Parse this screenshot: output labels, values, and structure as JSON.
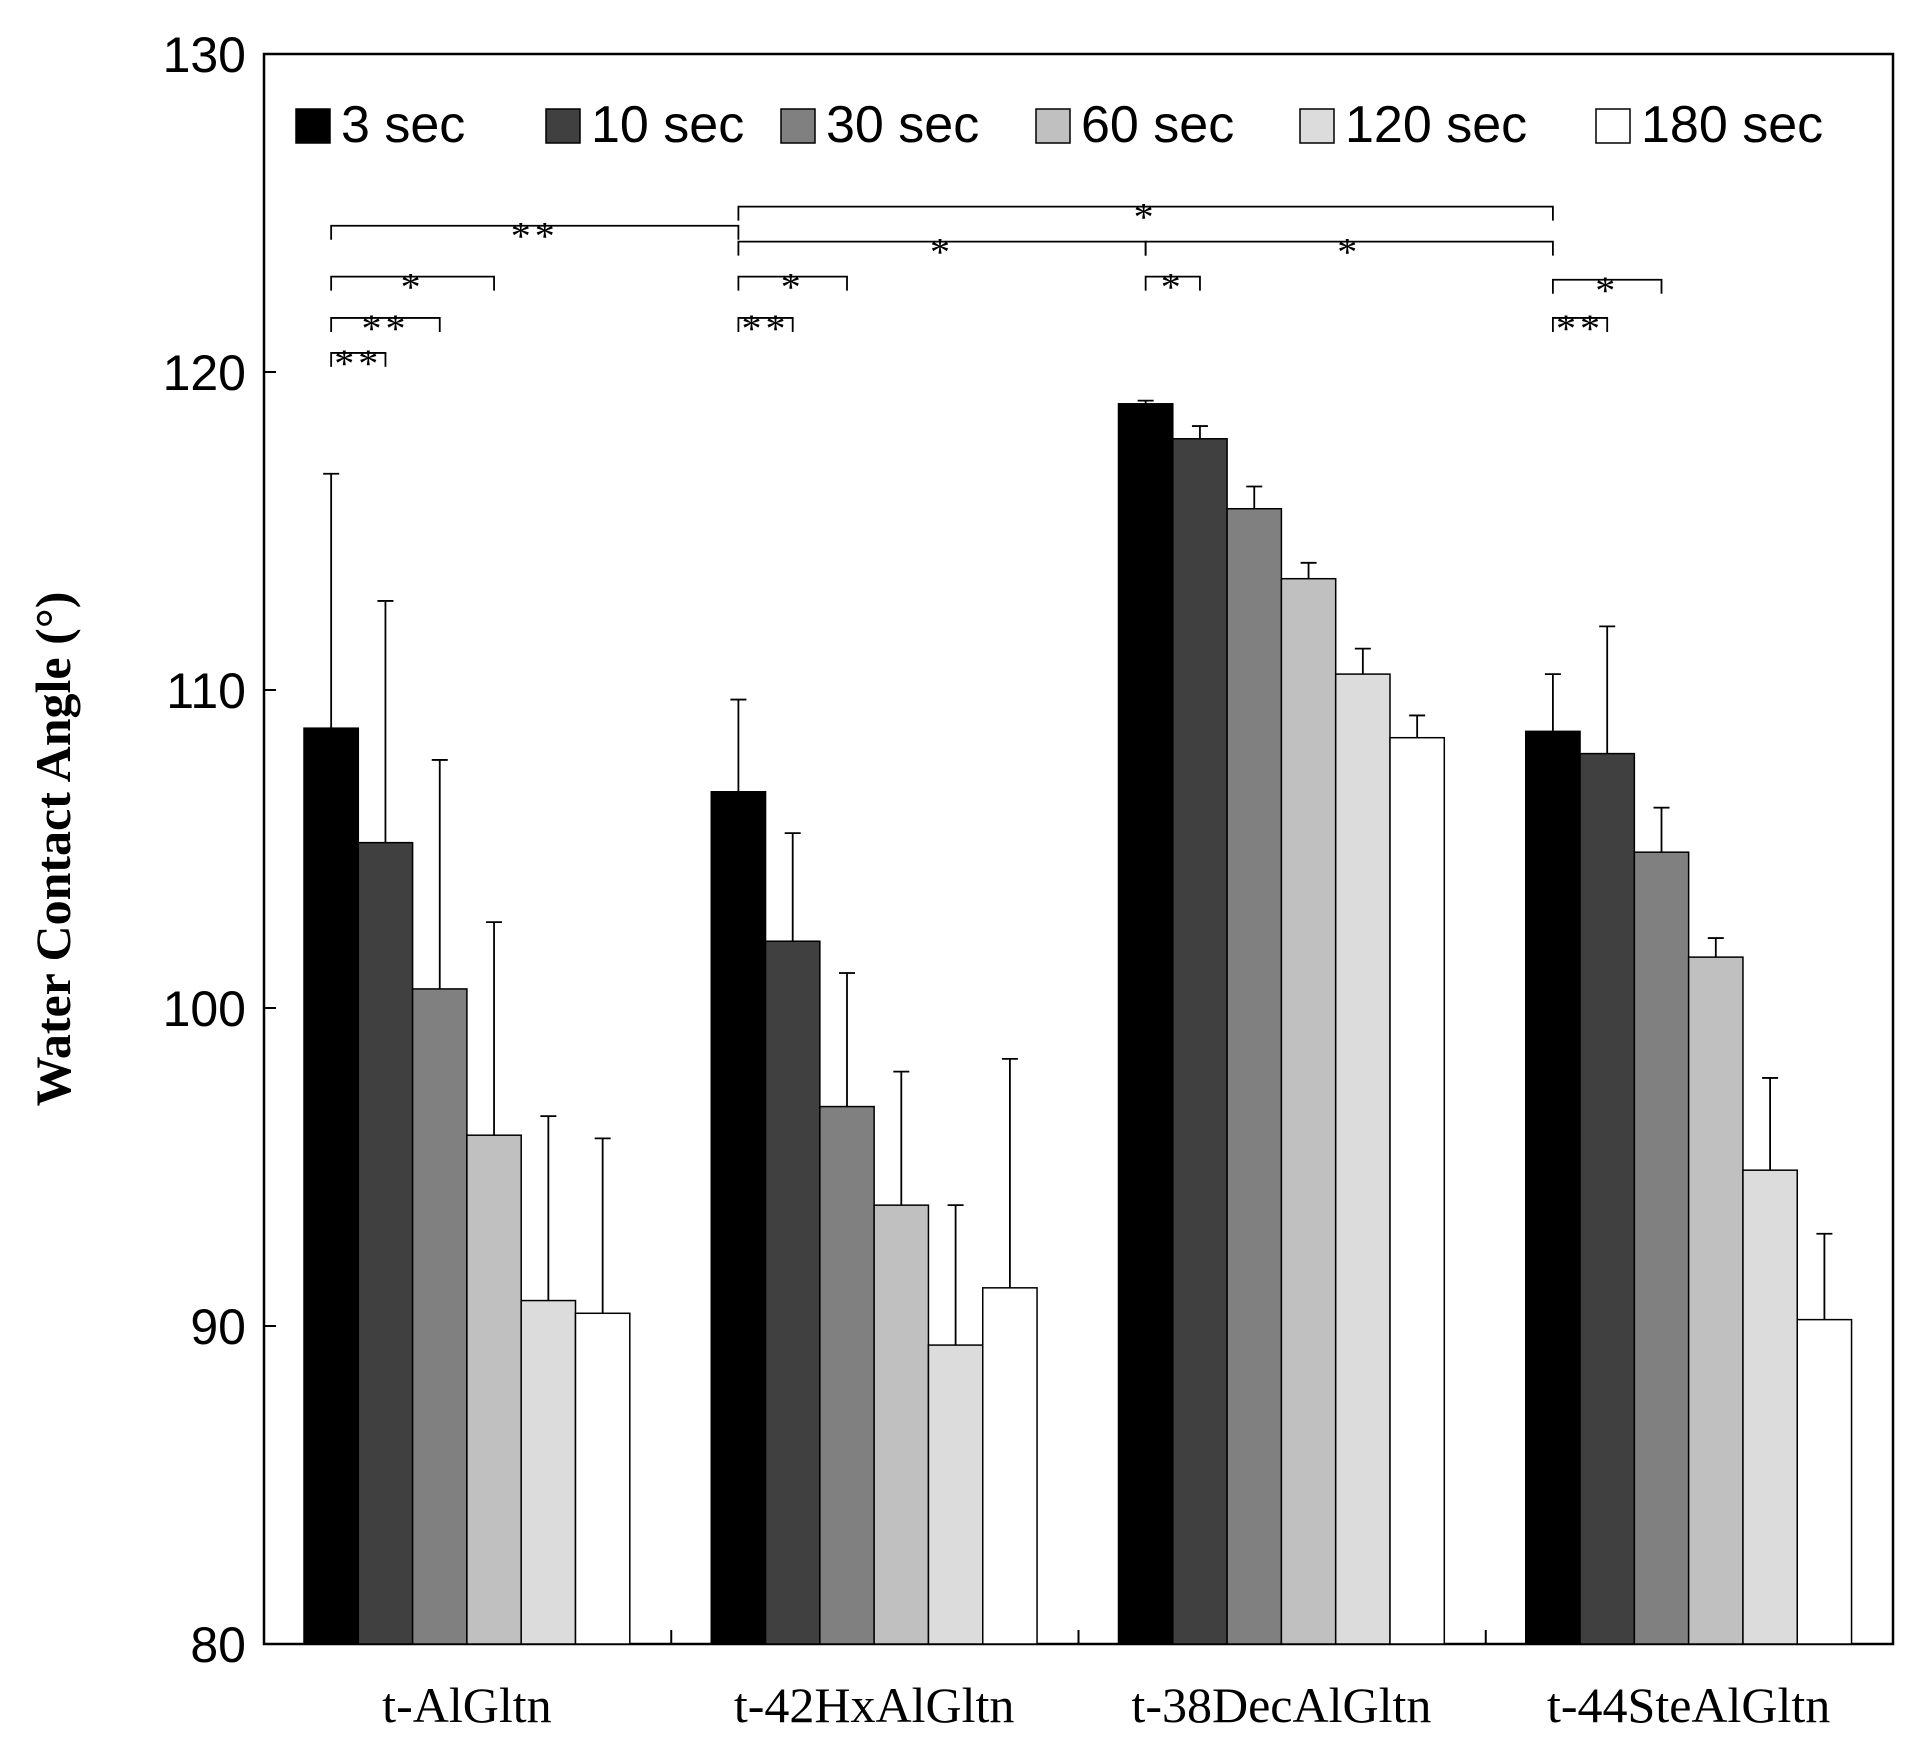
{
  "chart_data": {
    "type": "bar",
    "title": "",
    "xlabel": "",
    "ylabel": "Water Contact Angle (°)",
    "ylim": [
      80,
      130
    ],
    "yticks": [
      80,
      90,
      100,
      110,
      120,
      130
    ],
    "categories": [
      "t-AlGltn",
      "t-42HxAlGltn",
      "t-38DecAlGltn",
      "t-44SteAlGltn"
    ],
    "legend_position": "top",
    "series": [
      {
        "name": "3 sec",
        "color": "#000000",
        "values": [
          108.8,
          106.8,
          119.0,
          108.7
        ],
        "errors": [
          8.0,
          2.9,
          0.1,
          1.8
        ]
      },
      {
        "name": "10 sec",
        "color": "#404040",
        "values": [
          105.2,
          102.1,
          117.9,
          108.0
        ],
        "errors": [
          7.6,
          3.4,
          0.4,
          4.0
        ]
      },
      {
        "name": "30 sec",
        "color": "#808080",
        "values": [
          100.6,
          96.9,
          115.7,
          104.9
        ],
        "errors": [
          7.2,
          4.2,
          0.7,
          1.4
        ]
      },
      {
        "name": "60 sec",
        "color": "#c0c0c0",
        "values": [
          96.0,
          93.8,
          113.5,
          101.6
        ],
        "errors": [
          6.7,
          4.2,
          0.5,
          0.6
        ]
      },
      {
        "name": "120 sec",
        "color": "#dcdcdc",
        "values": [
          90.8,
          89.4,
          110.5,
          94.9
        ],
        "errors": [
          5.8,
          4.4,
          0.8,
          2.9
        ]
      },
      {
        "name": "180 sec",
        "color": "#ffffff",
        "values": [
          90.4,
          91.2,
          108.5,
          90.2
        ],
        "errors": [
          5.5,
          7.2,
          0.7,
          2.7
        ]
      }
    ],
    "significance": [
      {
        "label": "**",
        "from": [
          0,
          0
        ],
        "to": [
          1,
          0
        ],
        "level": 124.6
      },
      {
        "label": "*",
        "from": [
          0,
          0
        ],
        "to": [
          0,
          3
        ],
        "level": 123.0
      },
      {
        "label": "**",
        "from": [
          0,
          0
        ],
        "to": [
          0,
          2
        ],
        "level": 121.7
      },
      {
        "label": "**",
        "from": [
          0,
          0
        ],
        "to": [
          0,
          1
        ],
        "level": 120.6
      },
      {
        "label": "*",
        "from": [
          1,
          0
        ],
        "to": [
          3,
          0
        ],
        "level": 125.2
      },
      {
        "label": "*",
        "from": [
          1,
          0
        ],
        "to": [
          2,
          0
        ],
        "level": 124.1
      },
      {
        "label": "*",
        "from": [
          2,
          0
        ],
        "to": [
          3,
          0
        ],
        "level": 124.1
      },
      {
        "label": "*",
        "from": [
          1,
          0
        ],
        "to": [
          1,
          2
        ],
        "level": 123.0
      },
      {
        "label": "**",
        "from": [
          1,
          0
        ],
        "to": [
          1,
          1
        ],
        "level": 121.7
      },
      {
        "label": "*",
        "from": [
          2,
          0
        ],
        "to": [
          2,
          1
        ],
        "level": 123.0
      },
      {
        "label": "*",
        "from": [
          3,
          0
        ],
        "to": [
          3,
          2
        ],
        "level": 122.9
      },
      {
        "label": "**",
        "from": [
          3,
          0
        ],
        "to": [
          3,
          1
        ],
        "level": 121.7
      }
    ]
  }
}
